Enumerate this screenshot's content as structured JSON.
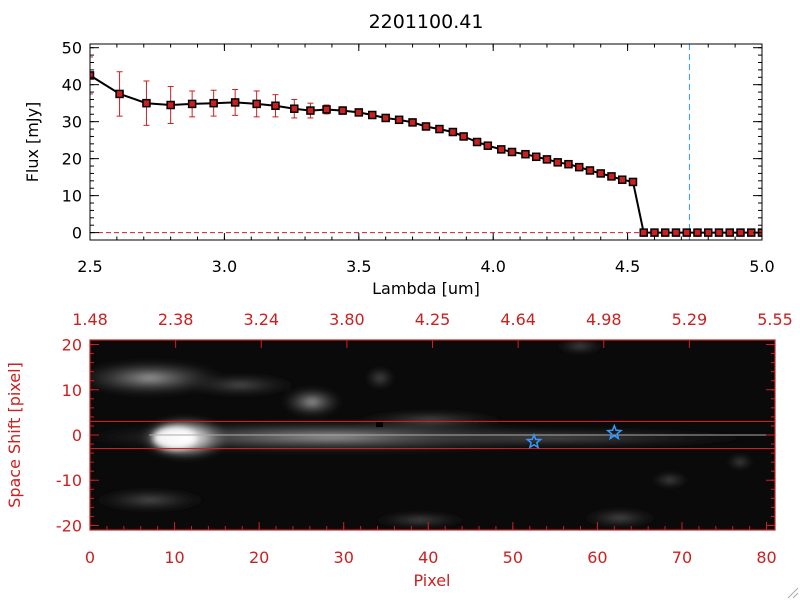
{
  "chart_data": [
    {
      "type": "line",
      "title": "2201100.41",
      "xlabel": "Lambda [um]",
      "ylabel": "Flux [mJy]",
      "xlim": [
        2.5,
        5.0
      ],
      "ylim": [
        -2,
        51
      ],
      "xticks": [
        "2.5",
        "3.0",
        "3.5",
        "4.0",
        "4.5",
        "5.0"
      ],
      "yticks": [
        "0",
        "10",
        "20",
        "30",
        "40",
        "50"
      ],
      "vline_x": 4.73,
      "series": [
        {
          "x": [
            2.5,
            2.61,
            2.71,
            2.8,
            2.88,
            2.96,
            3.04,
            3.12,
            3.19,
            3.26,
            3.32,
            3.38,
            3.44,
            3.5,
            3.55,
            3.6,
            3.65,
            3.7,
            3.75,
            3.8,
            3.85,
            3.89,
            3.94,
            3.98,
            4.03,
            4.07,
            4.12,
            4.16,
            4.2,
            4.24,
            4.28,
            4.32,
            4.36,
            4.4,
            4.44,
            4.48,
            4.52,
            4.56,
            4.6,
            4.64,
            4.68,
            4.72,
            4.76,
            4.8,
            4.84,
            4.88,
            4.92,
            4.96,
            5.0
          ],
          "y": [
            42.5,
            37.5,
            35.0,
            34.5,
            34.8,
            35.0,
            35.2,
            34.8,
            34.3,
            33.5,
            33.0,
            33.3,
            33.0,
            32.5,
            31.8,
            31.0,
            30.5,
            29.8,
            28.7,
            28.0,
            27.2,
            26.0,
            24.5,
            23.5,
            22.5,
            21.8,
            21.2,
            20.5,
            19.8,
            19.0,
            18.5,
            17.7,
            16.8,
            16.0,
            15.2,
            14.3,
            13.7,
            0,
            0,
            0,
            0,
            0,
            0,
            0,
            0,
            0,
            0,
            0,
            0
          ],
          "yerr": [
            5.0,
            6.0,
            6.0,
            5.0,
            3.5,
            3.5,
            3.5,
            3.5,
            3.0,
            2.5,
            2.0,
            1.2,
            1.0,
            0.8,
            0.7,
            0.6,
            0.6,
            0.6,
            0.6,
            0.6,
            0.6,
            0.6,
            0.6,
            0.6,
            0.6,
            0.6,
            0.6,
            0.6,
            0.6,
            0.6,
            0.6,
            0.6,
            0.6,
            0.6,
            0.6,
            0.6,
            0.6,
            0.5,
            0.5,
            0.5,
            0.5,
            0.5,
            0.5,
            0.5,
            0.5,
            0.5,
            0.5,
            0.5,
            0.5
          ]
        }
      ],
      "colors": {
        "line": "#000000",
        "markers": "#cc2020",
        "errorbars": "#cc2020",
        "vline": "#3399ff"
      }
    },
    {
      "type": "heatmap",
      "xlabel": "Pixel",
      "ylabel": "Space Shift [pixel]",
      "xlim": [
        0,
        81
      ],
      "ylim": [
        -21,
        21
      ],
      "xticks": [
        "0",
        "10",
        "20",
        "30",
        "40",
        "50",
        "60",
        "70",
        "80"
      ],
      "yticks": [
        "-20",
        "-10",
        "0",
        "10",
        "20"
      ],
      "top_xticks": [
        "1.48",
        "2.38",
        "3.24",
        "3.80",
        "4.25",
        "4.64",
        "4.98",
        "5.29",
        "5.55"
      ],
      "extraction_band": [
        -3,
        3
      ],
      "stars": [
        {
          "x": 52.5,
          "y": -1.5
        },
        {
          "x": 62.0,
          "y": 0.5
        }
      ],
      "colors": {
        "axes": "#cc2020",
        "band": "#cc2020",
        "stars": "#3399ff"
      }
    }
  ]
}
